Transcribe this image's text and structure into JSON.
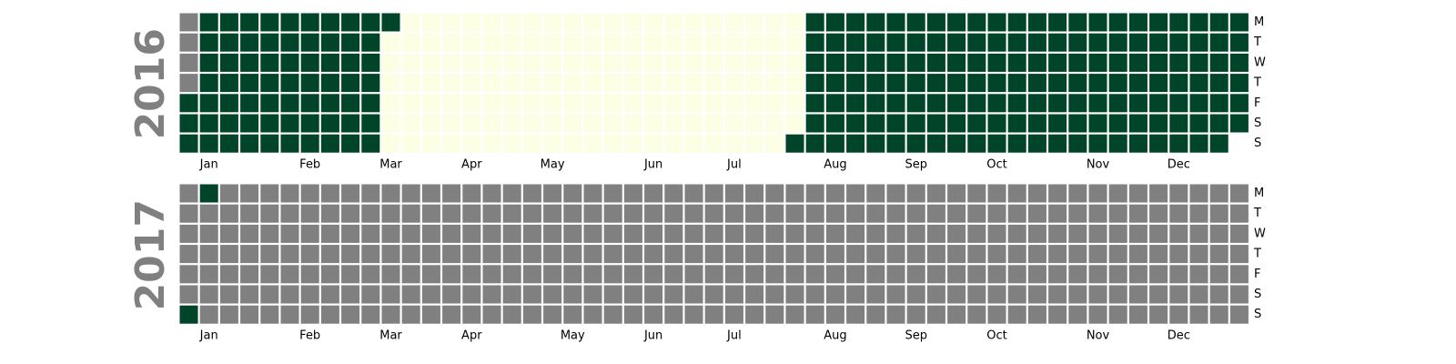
{
  "chart_data": {
    "type": "heatmap",
    "colors": {
      "active": "#00442a",
      "low": "#fcffe4",
      "empty": "#808080"
    },
    "day_labels": [
      "M",
      "T",
      "W",
      "T",
      "F",
      "S",
      "S"
    ],
    "month_labels": [
      "Jan",
      "Feb",
      "Mar",
      "Apr",
      "May",
      "Jun",
      "Jul",
      "Aug",
      "Sep",
      "Oct",
      "Nov",
      "Dec"
    ],
    "years": [
      {
        "year": "2016",
        "start_weekday": 4,
        "days_in_year": 366,
        "active_ranges": [
          [
            "2016-01-01",
            "2016-03-07"
          ],
          [
            "2016-07-31",
            "2016-12-31"
          ]
        ],
        "low_ranges": [
          [
            "2016-03-08",
            "2016-07-30"
          ]
        ],
        "month_label_weeks": [
          1,
          6,
          10,
          14,
          18,
          23,
          27,
          32,
          36,
          40,
          45,
          49
        ]
      },
      {
        "year": "2017",
        "start_weekday": 6,
        "days_in_year": 365,
        "active_ranges": [
          [
            "2017-01-01",
            "2017-01-02"
          ]
        ],
        "low_ranges": [],
        "month_label_weeks": [
          1,
          6,
          10,
          14,
          19,
          23,
          27,
          32,
          36,
          40,
          45,
          49
        ]
      }
    ]
  }
}
